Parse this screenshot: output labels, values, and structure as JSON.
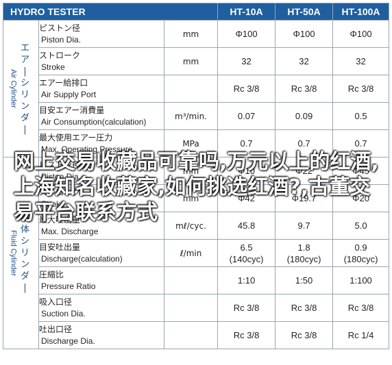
{
  "header": {
    "title": "HYDRO TESTER",
    "models": [
      "HT-10A",
      "HT-50A",
      "HT-100A"
    ]
  },
  "groups": [
    {
      "jp": "エアーシリンダー",
      "en": "Air Cylinder"
    },
    {
      "jp": "流体シリンダー",
      "en": "Fluid Cylinder"
    }
  ],
  "rows": [
    {
      "jp": "ピストン径",
      "en": "Piston Dia.",
      "unit": "mm",
      "values": [
        "Φ100",
        "Φ100",
        "Φ100"
      ]
    },
    {
      "jp": "ストローク",
      "en": "Stroke",
      "unit": "mm",
      "values": [
        "32",
        "32",
        "32"
      ]
    },
    {
      "jp": "エアー給排口",
      "en": "Air Supply Port",
      "unit": "",
      "values": [
        "Rc 3/8",
        "Rc 3/8",
        "Rc 3/8"
      ]
    },
    {
      "jp": "目安エアー消費量",
      "en": "Air Consumption(calculation)",
      "unit": "m³/min.",
      "values": [
        "0.07",
        "0.09",
        "0.5"
      ]
    },
    {
      "jp": "最大使用エアー圧力",
      "en": "Max. Operating Pressure",
      "unit": "MPa",
      "values": [
        "0.7",
        "0.7",
        "0.7"
      ]
    },
    {
      "jp": "ピストン径",
      "en": "Piston Dia.",
      "unit": "mm",
      "values": [
        "Φ10",
        "Φ22",
        "Φ45"
      ]
    },
    {
      "jp": "ストローク",
      "en": "Stroke",
      "unit": "mm",
      "values": [
        "Φ42",
        "Φ19.7",
        "Φ20"
      ]
    },
    {
      "jp": "最大吐出量",
      "en": "Max. Discharge",
      "unit": "mℓ/cyc.",
      "values": [
        "45.8",
        "9.7",
        "5.0"
      ]
    },
    {
      "jp": "目安吐出量",
      "en": "Discharge(calculation)",
      "unit": "ℓ/min",
      "values": [
        "6.5\n(140cyc)",
        "1.8\n(180cyc)",
        "0.9\n(180cyc)"
      ]
    },
    {
      "jp": "圧縮比",
      "en": "Pressure Ratio",
      "unit": "",
      "values": [
        "1:10",
        "1:50",
        "1:100"
      ]
    },
    {
      "jp": "吸入口径",
      "en": "Suction Dia.",
      "unit": "",
      "values": [
        "Rc 3/8",
        "Rc 3/8",
        "Rc 3/8"
      ]
    },
    {
      "jp": "吐出口径",
      "en": "Discharge Dia.",
      "unit": "",
      "values": [
        "Rc 3/8",
        "Rc 3/8",
        "Rc 1/4"
      ]
    }
  ],
  "overlay_text": "网上交易收藏品可靠吗,万元以上的红酒,上海知名收藏家,如何挑选红酒?,古董交易平台联系方式"
}
